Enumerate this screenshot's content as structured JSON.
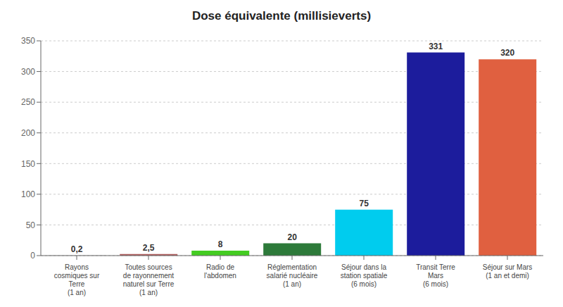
{
  "chart_data": {
    "type": "bar",
    "title": "Dose équivalente (millisieverts)",
    "categories": [
      "Rayons\ncosmiques sur\nTerre\n(1 an)",
      "Toutes sources\nde rayonnement\nnaturel sur Terre\n(1 an)",
      "Radio de\nl'abdomen",
      "Réglementation\nsalarié nucléaire\n(1 an)",
      "Séjour dans la\nstation spatiale\n(6 mois)",
      "Transit Terre\nMars\n(6 mois)",
      "Séjour sur Mars\n(1 an et demi)"
    ],
    "values": [
      0.2,
      2.5,
      8,
      20,
      75,
      331,
      320
    ],
    "value_labels": [
      "0,2",
      "2,5",
      "8",
      "20",
      "75",
      "331",
      "320"
    ],
    "colors": [
      "#aaaaaa",
      "#b06060",
      "#44cc22",
      "#2d7a3a",
      "#00ccee",
      "#1c1c9c",
      "#e06040"
    ],
    "data_labels": true,
    "ylim": [
      0,
      350
    ],
    "yticks": [
      0,
      50,
      100,
      150,
      200,
      250,
      300,
      350
    ],
    "grid": true
  }
}
